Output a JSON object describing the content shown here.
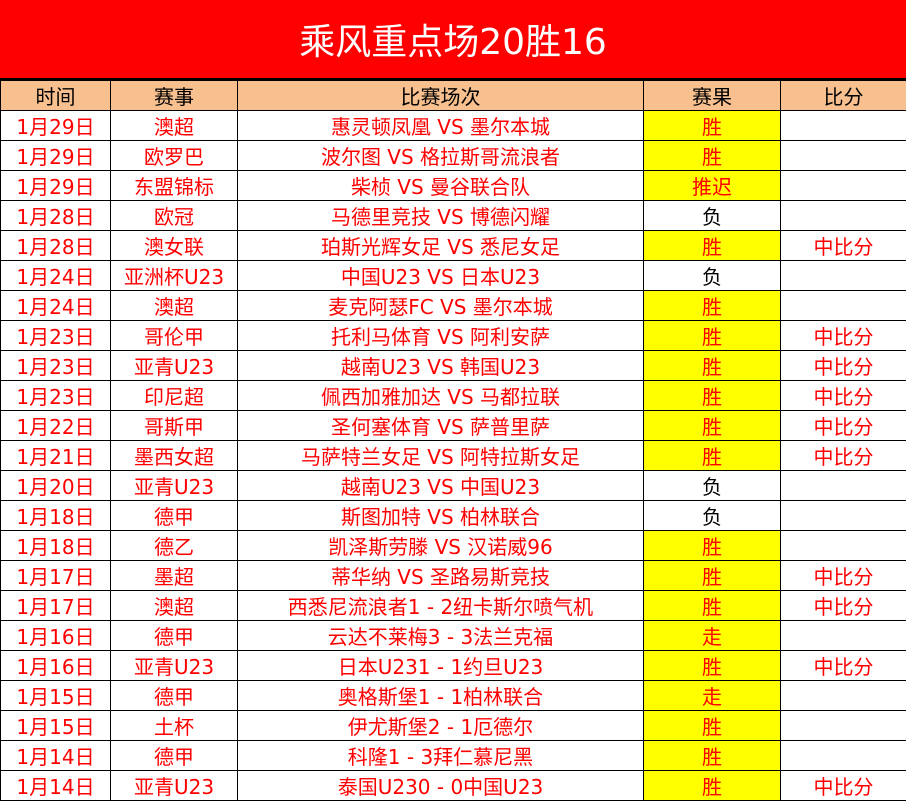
{
  "title": "乘风重点场20胜16",
  "colors": {
    "title_bg": "#ff0000",
    "header_bg": "#f8c08e",
    "highlight": "#ffff00",
    "text": "#ff0000"
  },
  "headers": [
    "时间",
    "赛事",
    "比赛场次",
    "赛果",
    "比分"
  ],
  "rows": [
    {
      "date": "1月29日",
      "league": "澳超",
      "match": "惠灵顿凤凰 VS 墨尔本城",
      "result": "胜",
      "score": ""
    },
    {
      "date": "1月29日",
      "league": "欧罗巴",
      "match": "波尔图 VS 格拉斯哥流浪者",
      "result": "胜",
      "score": ""
    },
    {
      "date": "1月29日",
      "league": "东盟锦标",
      "match": "柴桢 VS 曼谷联合队",
      "result": "推迟",
      "score": ""
    },
    {
      "date": "1月28日",
      "league": "欧冠",
      "match": "马德里竞技 VS 博德闪耀",
      "result": "负",
      "score": ""
    },
    {
      "date": "1月28日",
      "league": "澳女联",
      "match": "珀斯光辉女足 VS 悉尼女足",
      "result": "胜",
      "score": "中比分"
    },
    {
      "date": "1月24日",
      "league": "亚洲杯U23",
      "match": "中国U23 VS 日本U23",
      "result": "负",
      "score": ""
    },
    {
      "date": "1月24日",
      "league": "澳超",
      "match": "麦克阿瑟FC VS 墨尔本城",
      "result": "胜",
      "score": ""
    },
    {
      "date": "1月23日",
      "league": "哥伦甲",
      "match": "托利马体育 VS 阿利安萨",
      "result": "胜",
      "score": "中比分"
    },
    {
      "date": "1月23日",
      "league": "亚青U23",
      "match": "越南U23 VS 韩国U23",
      "result": "胜",
      "score": "中比分"
    },
    {
      "date": "1月23日",
      "league": "印尼超",
      "match": "佩西加雅加达 VS 马都拉联",
      "result": "胜",
      "score": "中比分"
    },
    {
      "date": "1月22日",
      "league": "哥斯甲",
      "match": "圣何塞体育 VS 萨普里萨",
      "result": "胜",
      "score": "中比分"
    },
    {
      "date": "1月21日",
      "league": "墨西女超",
      "match": "马萨特兰女足 VS 阿特拉斯女足",
      "result": "胜",
      "score": "中比分"
    },
    {
      "date": "1月20日",
      "league": "亚青U23",
      "match": "越南U23 VS 中国U23",
      "result": "负",
      "score": ""
    },
    {
      "date": "1月18日",
      "league": "德甲",
      "match": "斯图加特 VS 柏林联合",
      "result": "负",
      "score": ""
    },
    {
      "date": "1月18日",
      "league": "德乙",
      "match": "凯泽斯劳滕 VS 汉诺威96",
      "result": "胜",
      "score": ""
    },
    {
      "date": "1月17日",
      "league": "墨超",
      "match": "蒂华纳 VS 圣路易斯竞技",
      "result": "胜",
      "score": "中比分"
    },
    {
      "date": "1月17日",
      "league": "澳超",
      "match": "西悉尼流浪者1 - 2纽卡斯尔喷气机",
      "result": "胜",
      "score": "中比分"
    },
    {
      "date": "1月16日",
      "league": "德甲",
      "match": "云达不莱梅3 - 3法兰克福",
      "result": "走",
      "score": ""
    },
    {
      "date": "1月16日",
      "league": "亚青U23",
      "match": "日本U231 - 1约旦U23",
      "result": "胜",
      "score": "中比分"
    },
    {
      "date": "1月15日",
      "league": "德甲",
      "match": "奥格斯堡1 - 1柏林联合",
      "result": "走",
      "score": ""
    },
    {
      "date": "1月15日",
      "league": "土杯",
      "match": "伊尤斯堡2 - 1厄德尔",
      "result": "胜",
      "score": ""
    },
    {
      "date": "1月14日",
      "league": "德甲",
      "match": "科隆1 - 3拜仁慕尼黑",
      "result": "胜",
      "score": ""
    },
    {
      "date": "1月14日",
      "league": "亚青U23",
      "match": "泰国U230 - 0中国U23",
      "result": "胜",
      "score": "中比分"
    }
  ]
}
